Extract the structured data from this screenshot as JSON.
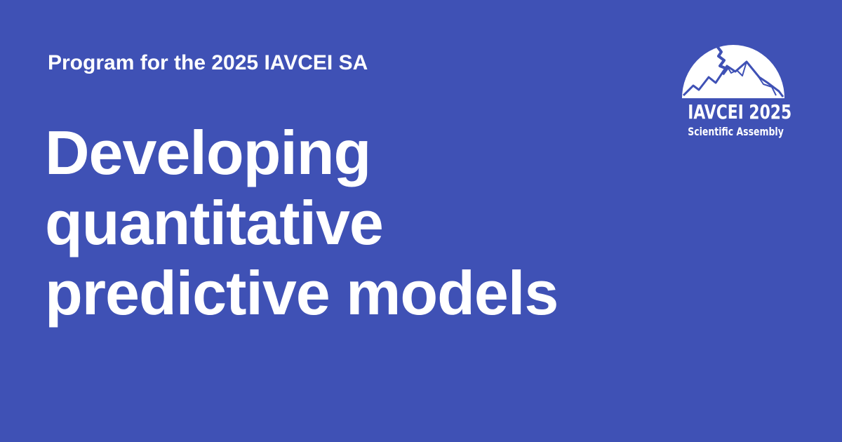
{
  "card": {
    "background_color": "#3f51b5",
    "text_color": "#ffffff"
  },
  "eyebrow": {
    "text": "Program for the 2025 IAVCEI SA"
  },
  "headline": {
    "lines": [
      "Developing",
      "quantitative",
      "predictive models"
    ]
  },
  "logo": {
    "icon": "volcano-dome-icon",
    "title": "IAVCEI 2025",
    "subtitle": "Scientific Assembly"
  }
}
